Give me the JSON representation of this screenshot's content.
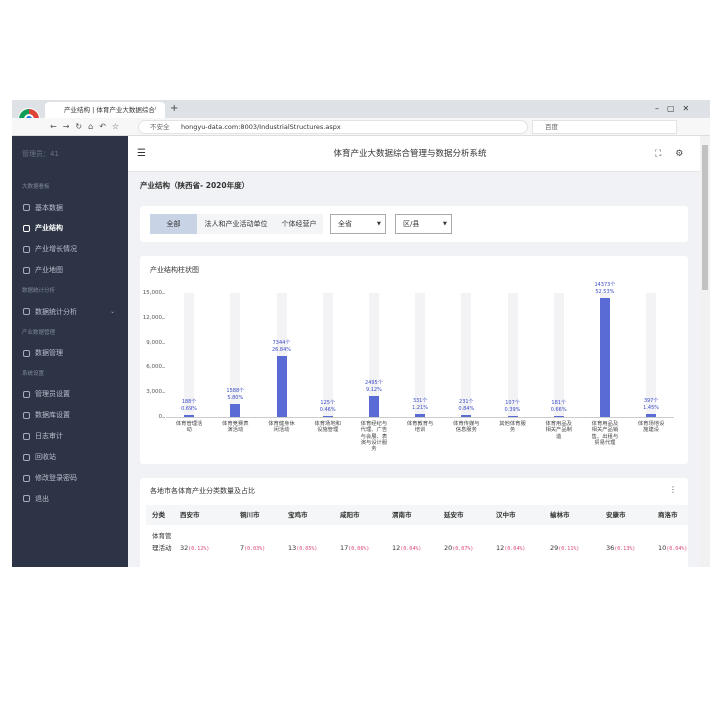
{
  "browser": {
    "tab_title": "产业结构 | 体育产业大数据综合管理",
    "security": "不安全",
    "url": "hongyu-data.com:8003/IndustrialStructures.aspx",
    "search": "百度"
  },
  "sidebar": {
    "user": "管理员：41",
    "groups": [
      {
        "heading": "大数据看板",
        "items": [
          "基本数据",
          "产业结构",
          "产业增长情况",
          "产业地图"
        ]
      },
      {
        "heading": "数据统计分析",
        "items": [
          "数据统计分析"
        ]
      },
      {
        "heading": "产业数据管理",
        "items": [
          "数据管理"
        ]
      },
      {
        "heading": "系统设置",
        "items": [
          "管理员设置",
          "数据库设置",
          "日志审计",
          "回收站",
          "修改登录密码",
          "退出"
        ]
      }
    ]
  },
  "header": {
    "title": "体育产业大数据综合管理与数据分析系统"
  },
  "breadcrumb": "产业结构（陕西省- 2020年度）",
  "filters": {
    "tabs": [
      "全部",
      "法人和产业活动单位",
      "个体经营户"
    ],
    "selects": [
      "全省",
      "区/县"
    ]
  },
  "chart_data": {
    "type": "bar",
    "title": "产业结构柱状图",
    "color": "#5b6bd6",
    "categories": [
      "体育管理活动",
      "体育竞赛表演活动",
      "体育健身休闲活动",
      "体育场地和设施管理",
      "体育经纪与代理、广告与会展、表演与设计服务",
      "体育教育与培训",
      "体育传媒与信息服务",
      "其他体育服务",
      "体育用品及相关产品制造",
      "体育用品及相关产品销售、出租与贸易代理",
      "体育场地设施建设"
    ],
    "values": [
      188,
      1588,
      7344,
      125,
      2495,
      331,
      231,
      107,
      181,
      14373,
      397
    ],
    "value_labels": [
      "188个",
      "1588个",
      "7344个",
      "125个",
      "2495个",
      "331个",
      "231个",
      "107个",
      "181个",
      "14373个",
      "397个"
    ],
    "shares": [
      0.69,
      5.8,
      26.84,
      0.46,
      9.12,
      1.21,
      0.84,
      0.39,
      0.66,
      52.53,
      1.45
    ],
    "share_labels": [
      "0.69%",
      "5.80%",
      "26.84%",
      "0.46%",
      "9.12%",
      "1.21%",
      "0.84%",
      "0.39%",
      "0.66%",
      "52.53%",
      "1.45%"
    ],
    "ylim": [
      0,
      15000
    ],
    "yticks": [
      0,
      {
        "value": 3000,
        "label": "3,000"
      },
      {
        "value": 6000,
        "label": "6,000"
      },
      {
        "value": 9000,
        "label": "9,000"
      },
      {
        "value": 12000,
        "label": "12,000"
      },
      {
        "value": 15000,
        "label": "15,000"
      }
    ]
  },
  "table": {
    "title": "各地市各体育产业分类数量及占比",
    "columns": [
      "分类",
      "西安市",
      "铜川市",
      "宝鸡市",
      "咸阳市",
      "渭南市",
      "延安市",
      "汉中市",
      "榆林市",
      "安康市",
      "商洛市"
    ],
    "rows": [
      {
        "category": "体育管理活动",
        "cells": [
          {
            "count": "32",
            "share": "(0.12%)"
          },
          {
            "count": "7",
            "share": "(0.03%)"
          },
          {
            "count": "13",
            "share": "(0.05%)"
          },
          {
            "count": "17",
            "share": "(0.06%)"
          },
          {
            "count": "12",
            "share": "(0.04%)"
          },
          {
            "count": "20",
            "share": "(0.07%)"
          },
          {
            "count": "12",
            "share": "(0.04%)"
          },
          {
            "count": "29",
            "share": "(0.11%)"
          },
          {
            "count": "36",
            "share": "(0.13%)"
          },
          {
            "count": "10",
            "share": "(0.04%)"
          }
        ]
      }
    ]
  }
}
